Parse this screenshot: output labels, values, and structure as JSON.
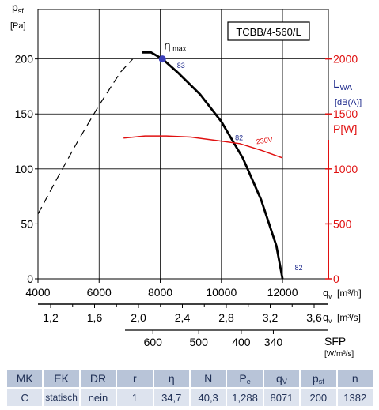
{
  "chart_data": {
    "type": "line",
    "title": "TCBB/4-560/L",
    "ylabel": {
      "symbol": "p",
      "sub": "sf",
      "unit": "[Pa]"
    },
    "ylim": [
      0,
      245
    ],
    "yticks": [
      0,
      50,
      100,
      150,
      200
    ],
    "xlim": [
      4000,
      13500
    ],
    "xlabel": {
      "symbol": "q",
      "sub": "v",
      "unit": "[m³/h]"
    },
    "xticks": [
      4000,
      6000,
      8000,
      10000,
      12000
    ],
    "xlabel2": {
      "symbol": "q",
      "sub": "v",
      "unit": "[m³/s]"
    },
    "xticks2": [
      "1,2",
      "1,6",
      "2,0",
      "2,4",
      "2,8",
      "3,2",
      "3,6"
    ],
    "sfp_label": "SFP",
    "sfp_unit": "[W/m³/s]",
    "sfp_ticks": [
      {
        "label": "600",
        "at": 7760
      },
      {
        "label": "500",
        "at": 9260
      },
      {
        "label": "400",
        "at": 10650
      },
      {
        "label": "340",
        "at": 11700
      }
    ],
    "lwa_label": {
      "symbol": "L",
      "sub": "WA",
      "unit": "[dB(A)]"
    },
    "power_label": "P[W]",
    "right_ticks": [
      0,
      500,
      1000,
      1500,
      2000
    ],
    "right_lim": [
      0,
      2450
    ],
    "eta_label": {
      "symbol": "η",
      "sub": "max"
    },
    "eta_point": {
      "x": 8071,
      "y": 200
    },
    "series": [
      {
        "name": "unstable",
        "style": "dashed",
        "x": [
          4000,
          4600,
          5300,
          6000,
          6700,
          7100
        ],
        "y": [
          59,
          90,
          125,
          158,
          188,
          200
        ]
      },
      {
        "name": "pressure",
        "style": "solid",
        "x": [
          7400,
          7700,
          8071,
          8600,
          9300,
          10000,
          10700,
          11300,
          11800,
          12000
        ],
        "y": [
          206,
          206,
          200,
          187,
          168,
          143,
          110,
          72,
          30,
          0
        ]
      },
      {
        "name": "230V",
        "style": "power",
        "x": [
          6800,
          7500,
          8200,
          9000,
          9800,
          10600,
          11300,
          12000
        ],
        "y": [
          1280,
          1300,
          1300,
          1290,
          1260,
          1230,
          1170,
          1100
        ]
      }
    ],
    "noise_labels": [
      {
        "text": "83",
        "x": 8550,
        "y": 192
      },
      {
        "text": "82",
        "x": 10450,
        "y": 126
      },
      {
        "text": "82",
        "x": 12400,
        "y": 8
      }
    ],
    "voltage_label": {
      "text": "230V",
      "x": 11150,
      "y": 1225
    }
  },
  "table": {
    "headers": [
      {
        "main": "MK"
      },
      {
        "main": "EK"
      },
      {
        "main": "DR"
      },
      {
        "main": "r"
      },
      {
        "main": "η"
      },
      {
        "main": "N"
      },
      {
        "main": "P",
        "sub": "e"
      },
      {
        "main": "q",
        "sub": "V"
      },
      {
        "main": "p",
        "sub": "sf"
      },
      {
        "main": "n"
      }
    ],
    "values": [
      "C",
      "statisch",
      "nein",
      "1",
      "34,7",
      "40,3",
      "1,288",
      "8071",
      "200",
      "1382"
    ]
  },
  "colors": {
    "power": "#e01010",
    "right_axis": "#e01010",
    "lwa": "#1e2a8c",
    "noise": "#1e2a8c",
    "eta_point": "#3b3fb8"
  }
}
